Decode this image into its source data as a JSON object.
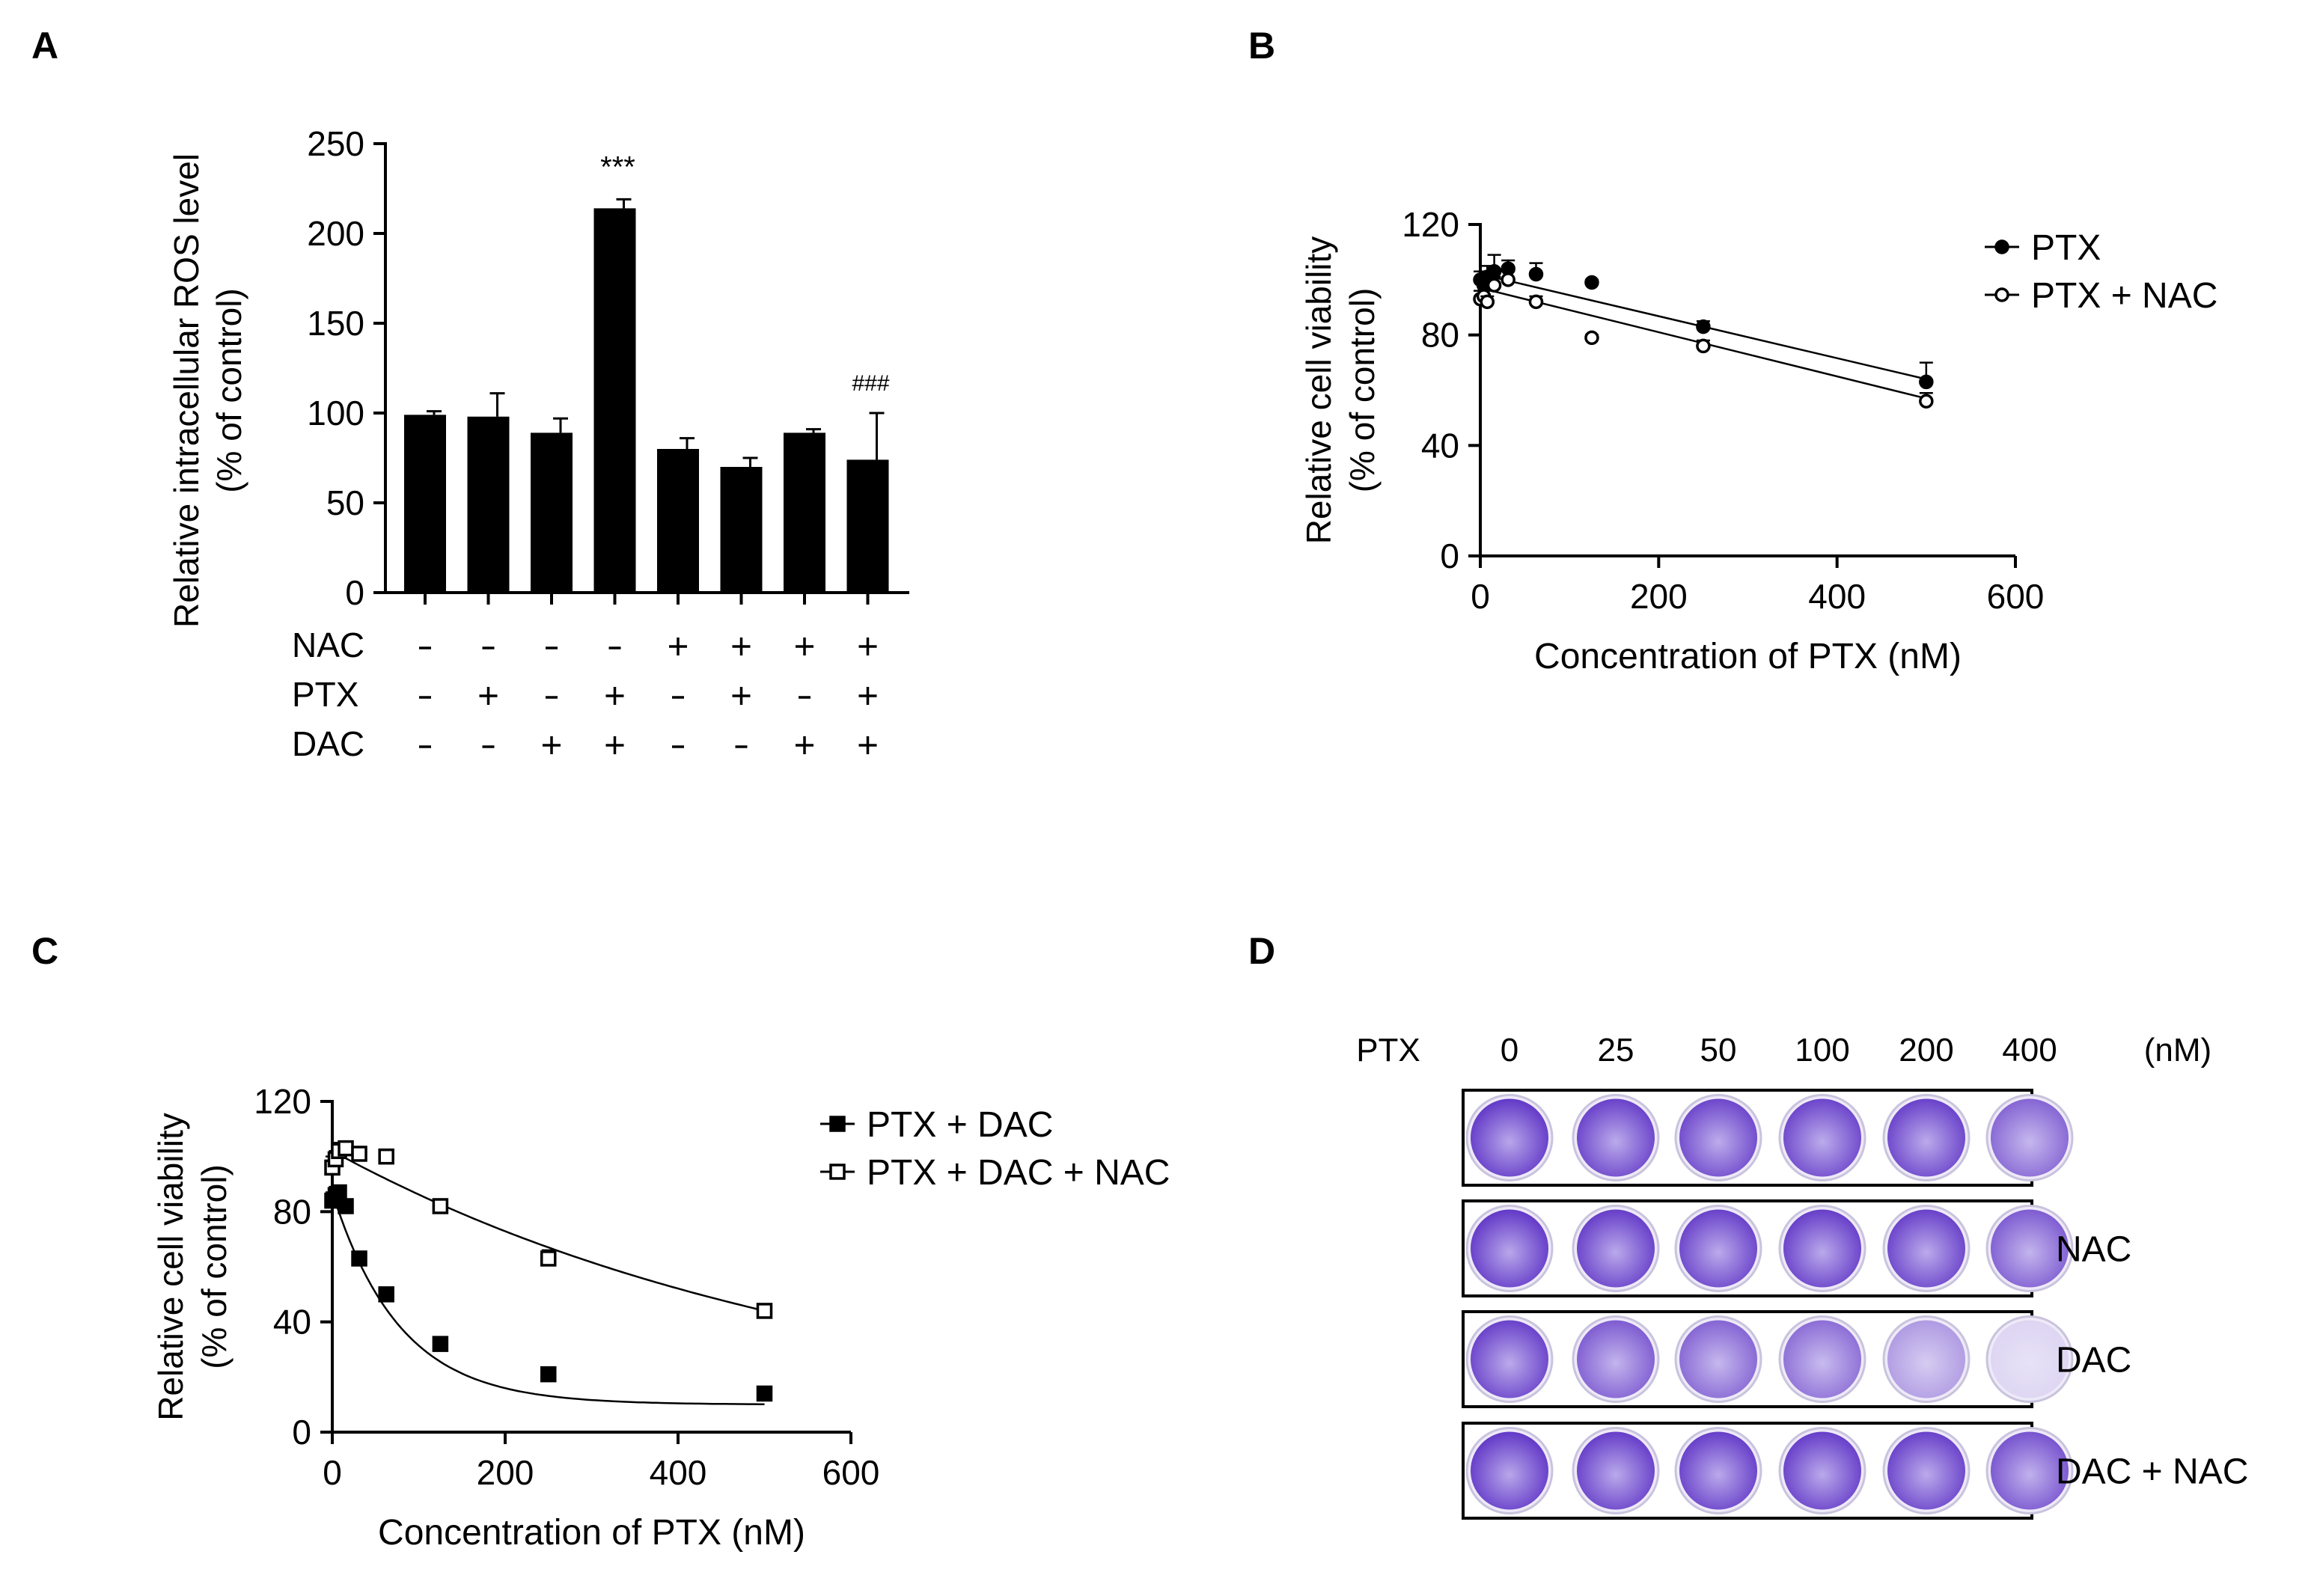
{
  "colors": {
    "ink": "#000000",
    "background": "#ffffff",
    "stain": "#5a2ec4",
    "stain_light": "#b8a7ea",
    "well_bg": "#eeeaf8"
  },
  "chart_data": [
    {
      "panel": "A",
      "type": "bar",
      "ylabel": "Relative intracellular ROS level",
      "ylabel2": "(% of control)",
      "ylim": [
        0,
        250
      ],
      "yticks": [
        "0",
        "50",
        "100",
        "150",
        "200",
        "250"
      ],
      "values": [
        99,
        98,
        89,
        214,
        80,
        70,
        89,
        74
      ],
      "errors": [
        2,
        13,
        8,
        5,
        6,
        5,
        2,
        26
      ],
      "annotations": [
        {
          "index": 3,
          "text": "***"
        },
        {
          "index": 7,
          "text": "###"
        }
      ],
      "treatments": [
        {
          "label": "NAC",
          "signs": [
            "-",
            "-",
            "-",
            "-",
            "+",
            "+",
            "+",
            "+"
          ]
        },
        {
          "label": "PTX",
          "signs": [
            "-",
            "+",
            "-",
            "+",
            "-",
            "+",
            "-",
            "+"
          ]
        },
        {
          "label": "DAC",
          "signs": [
            "-",
            "-",
            "+",
            "+",
            "-",
            "-",
            "+",
            "+"
          ]
        }
      ]
    },
    {
      "panel": "B",
      "type": "scatter",
      "xlabel": "Concentration of PTX (nM)",
      "ylabel": "Relative cell viability",
      "ylabel2": "(% of control)",
      "xlim": [
        0,
        600
      ],
      "ylim": [
        0,
        120
      ],
      "xticks": [
        "0",
        "200",
        "400",
        "600"
      ],
      "yticks": [
        "0",
        "40",
        "80",
        "120"
      ],
      "legend_position": "top-right",
      "series": [
        {
          "name": "PTX",
          "marker": "filled-circle",
          "x": [
            0,
            3.9,
            7.8,
            15.6,
            31.2,
            62.5,
            125,
            250,
            500
          ],
          "y": [
            100,
            98,
            101,
            103,
            104,
            102,
            99,
            83,
            63
          ],
          "err": [
            3,
            2,
            4,
            6,
            3,
            4,
            1,
            2,
            7
          ],
          "fit": [
            102,
            64
          ]
        },
        {
          "name": "PTX + NAC",
          "marker": "open-circle",
          "x": [
            0,
            3.9,
            7.8,
            15.6,
            31.2,
            62.5,
            125,
            250,
            500
          ],
          "y": [
            93,
            94,
            92,
            98,
            100,
            92,
            79,
            76,
            56
          ],
          "err": [
            3,
            2,
            2,
            3,
            3,
            2,
            1,
            2,
            3
          ],
          "fit": [
            97,
            57
          ]
        }
      ]
    },
    {
      "panel": "C",
      "type": "scatter",
      "xlabel": "Concentration of PTX (nM)",
      "ylabel": "Relative cell viability",
      "ylabel2": "(% of control)",
      "xlim": [
        0,
        600
      ],
      "ylim": [
        0,
        120
      ],
      "xticks": [
        "0",
        "200",
        "400",
        "600"
      ],
      "yticks": [
        "0",
        "40",
        "80",
        "120"
      ],
      "legend_position": "top-right",
      "series": [
        {
          "name": "PTX + DAC",
          "marker": "filled-square",
          "x": [
            0,
            3.9,
            7.8,
            15.6,
            31.2,
            62.5,
            125,
            250,
            500
          ],
          "y": [
            84,
            86,
            87,
            82,
            63,
            50,
            32,
            21,
            14
          ],
          "err": [
            3,
            3,
            2,
            2,
            2,
            2,
            1,
            1,
            1
          ],
          "fit_curve": {
            "bottom": 10,
            "top": 87,
            "k": 0.0128
          }
        },
        {
          "name": "PTX + DAC + NAC",
          "marker": "open-square",
          "x": [
            0,
            3.9,
            7.8,
            15.6,
            31.2,
            62.5,
            125,
            250,
            500
          ],
          "y": [
            96,
            99,
            102,
            103,
            101,
            100,
            82,
            63,
            44
          ],
          "err": [
            4,
            3,
            3,
            2,
            2,
            2,
            2,
            3,
            2
          ],
          "fit_curve": {
            "bottom": 0,
            "top": 102,
            "k": 0.00168
          }
        }
      ]
    }
  ],
  "panel_a": {
    "letter": "A"
  },
  "panel_b": {
    "letter": "B"
  },
  "panel_c": {
    "letter": "C"
  },
  "panel_d": {
    "letter": "D",
    "header_label": "PTX",
    "concentrations": [
      "0",
      "25",
      "50",
      "100",
      "200",
      "400"
    ],
    "unit": "(nM)",
    "rows": [
      {
        "label": "",
        "stain": [
          1.0,
          0.95,
          0.92,
          0.93,
          0.95,
          0.75
        ]
      },
      {
        "label": "NAC",
        "stain": [
          1.0,
          0.97,
          0.95,
          0.97,
          0.95,
          0.8
        ]
      },
      {
        "label": "DAC",
        "stain": [
          0.95,
          0.8,
          0.75,
          0.7,
          0.45,
          0.12
        ]
      },
      {
        "label": "DAC + NAC",
        "stain": [
          1.0,
          0.97,
          0.97,
          0.97,
          0.95,
          0.85
        ]
      }
    ]
  }
}
